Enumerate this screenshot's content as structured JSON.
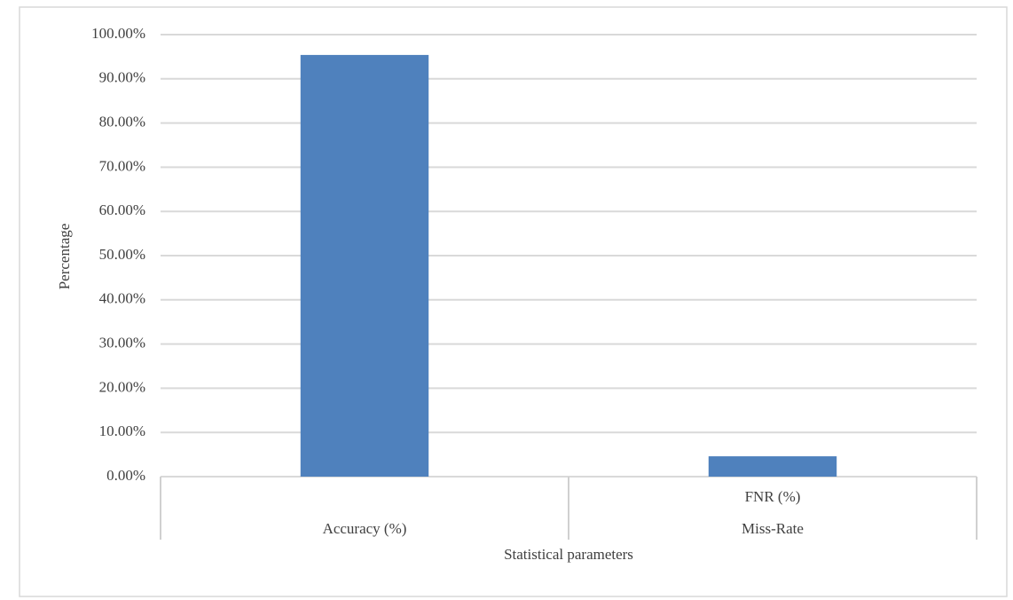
{
  "chart_data": {
    "type": "bar",
    "x_label": "Statistical parameters",
    "y_label": "Percentage",
    "categories": [
      null,
      "FNR (%)"
    ],
    "category_groups": [
      "Accuracy (%)",
      "Miss-Rate"
    ],
    "values": [
      95.4,
      4.6
    ],
    "color": "#4f81bd",
    "ylim": [
      0,
      100
    ],
    "yticks": [
      {
        "value": 0,
        "label": "0.00%"
      },
      {
        "value": 10,
        "label": "10.00%"
      },
      {
        "value": 20,
        "label": "20.00%"
      },
      {
        "value": 30,
        "label": "30.00%"
      },
      {
        "value": 40,
        "label": "40.00%"
      },
      {
        "value": 50,
        "label": "50.00%"
      },
      {
        "value": 60,
        "label": "60.00%"
      },
      {
        "value": 70,
        "label": "70.00%"
      },
      {
        "value": 80,
        "label": "80.00%"
      },
      {
        "value": 90,
        "label": "90.00%"
      },
      {
        "value": 100,
        "label": "100.00%"
      }
    ],
    "grid": true
  }
}
